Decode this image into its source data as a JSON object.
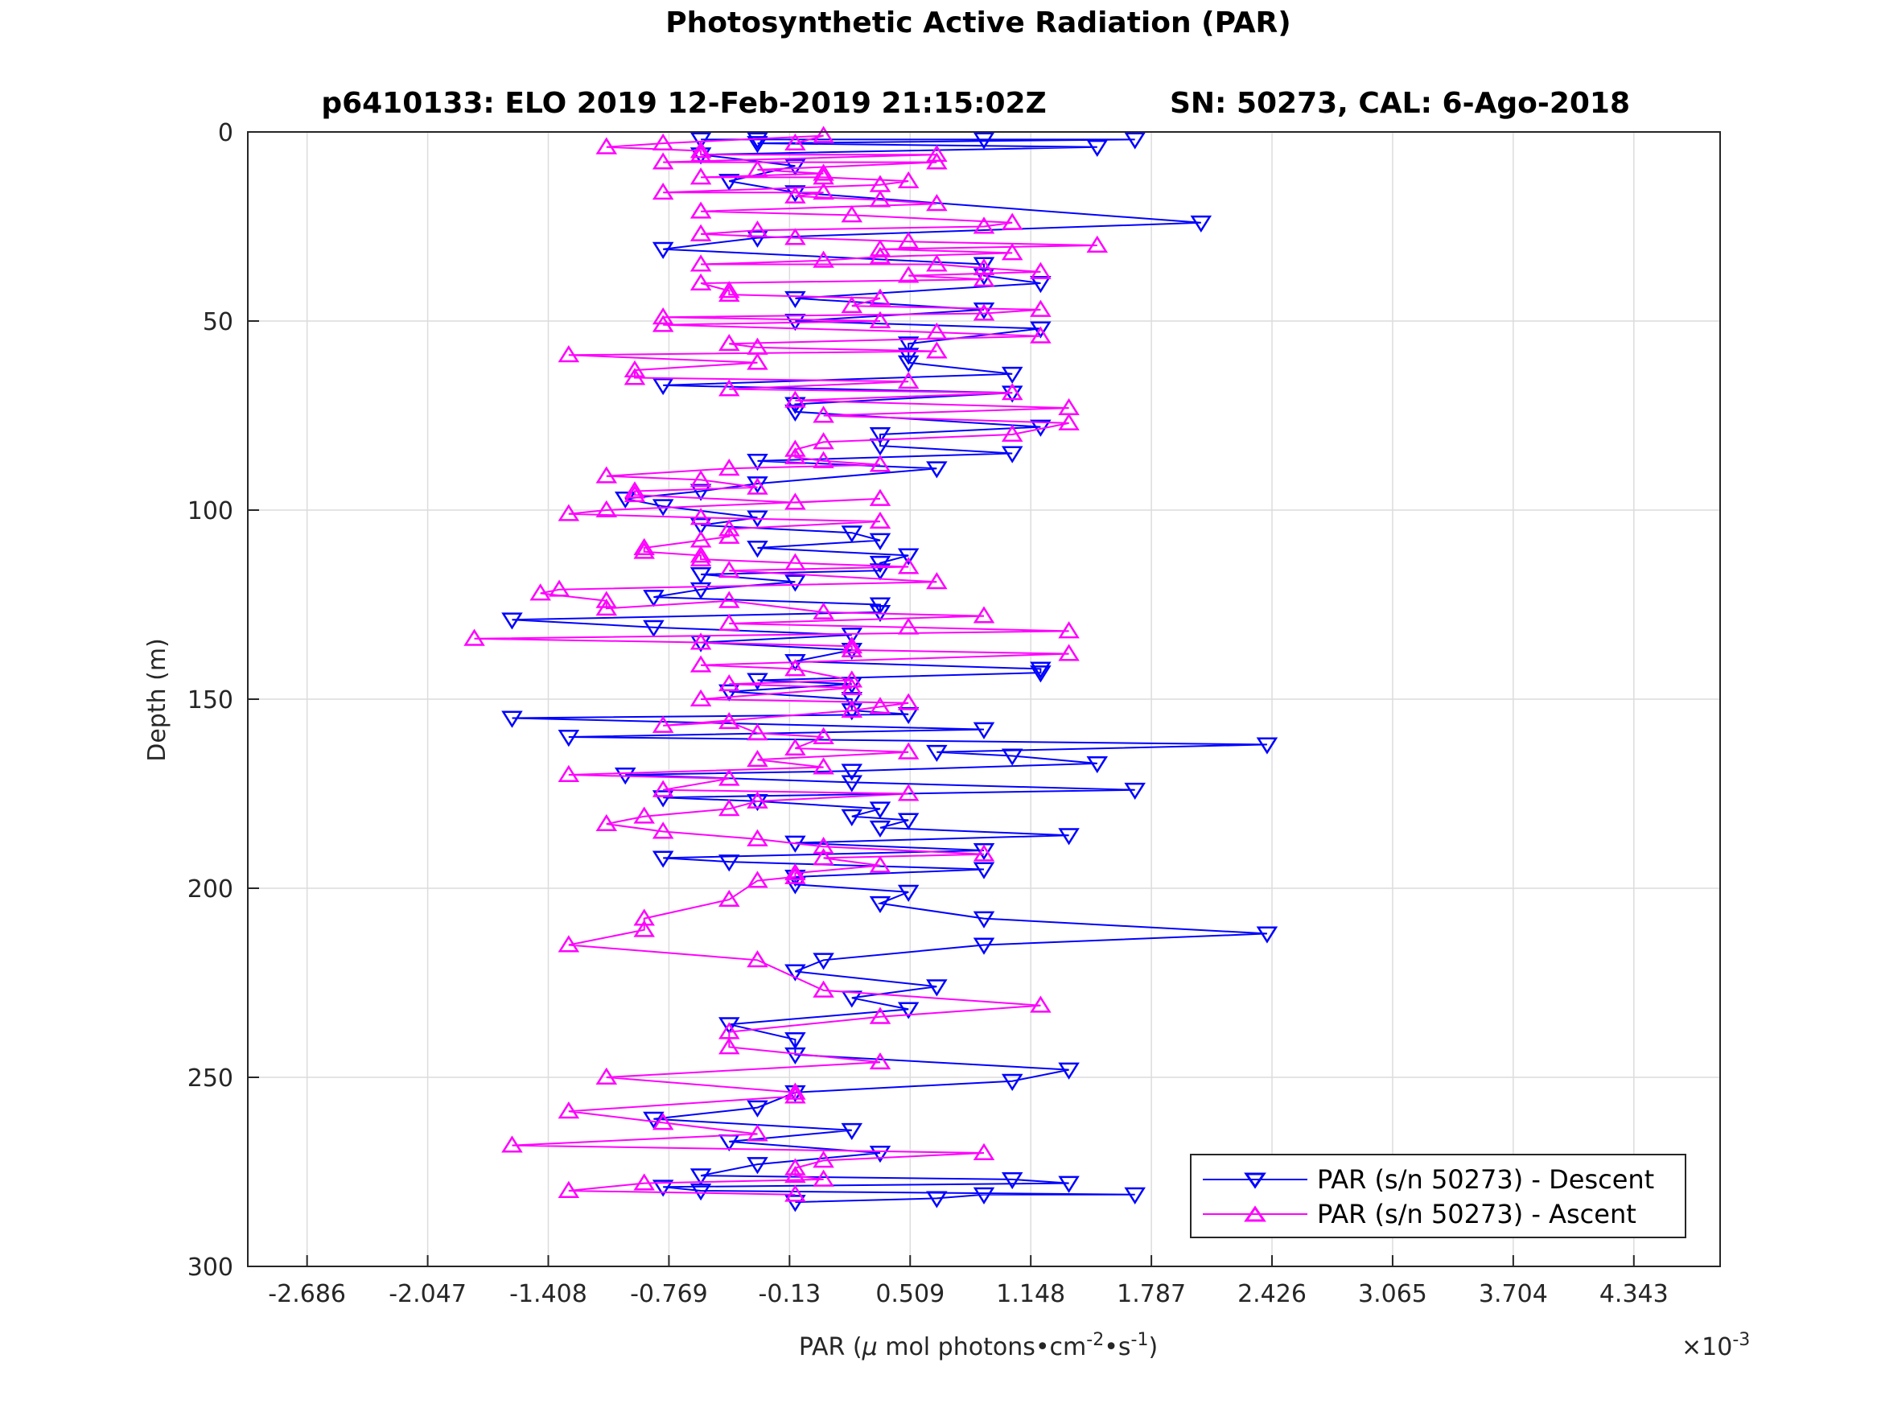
{
  "chart_data": {
    "type": "line",
    "title": "Photosynthetic Active Radiation (PAR)",
    "subtitle_left": "p6410133: ELO 2019 12-Feb-2019 21:15:02Z",
    "subtitle_right": "SN: 50273, CAL: 6-Ago-2018",
    "xlabel": "PAR (μ mol photons•cm⁻²•s⁻¹)",
    "xlabel_parts": {
      "mu": "μ",
      "text": " mol photons•cm",
      "exp1": "-2",
      "bullet_s": "•s",
      "exp2": "-1",
      "close": ")",
      "open": "PAR ("
    },
    "x_exponent_base": "×10",
    "x_exponent": "-3",
    "ylabel": "Depth (m)",
    "xlim": [
      -3.0,
      4.8
    ],
    "ylim": [
      0,
      300
    ],
    "y_reversed": true,
    "x_ticks": [
      -2.686,
      -2.047,
      -1.408,
      -0.769,
      -0.13,
      0.509,
      1.148,
      1.787,
      2.426,
      3.065,
      3.704,
      4.343
    ],
    "x_tick_labels": [
      "-2.686",
      "-2.047",
      "-1.408",
      "-0.769",
      "-0.13",
      "0.509",
      "1.148",
      "1.787",
      "2.426",
      "3.065",
      "3.704",
      "4.343"
    ],
    "y_ticks": [
      0,
      50,
      100,
      150,
      200,
      250,
      300
    ],
    "y_tick_labels": [
      "0",
      "50",
      "100",
      "150",
      "200",
      "250",
      "300"
    ],
    "grid": true,
    "legend_position": "bottom-right",
    "series": [
      {
        "name": "PAR (s/n 50273) - Descent",
        "color": "#0000ff",
        "marker": "triangle-down",
        "points": [
          [
            -0.6,
            2
          ],
          [
            -0.3,
            2
          ],
          [
            0.9,
            2
          ],
          [
            1.7,
            2
          ],
          [
            -0.3,
            3
          ],
          [
            1.5,
            4
          ],
          [
            -0.6,
            6
          ],
          [
            -0.1,
            9
          ],
          [
            -0.45,
            13
          ],
          [
            -0.1,
            16
          ],
          [
            2.05,
            24
          ],
          [
            -0.3,
            28
          ],
          [
            -0.8,
            31
          ],
          [
            0.9,
            35
          ],
          [
            0.9,
            38
          ],
          [
            1.2,
            40
          ],
          [
            -0.1,
            44
          ],
          [
            0.9,
            47
          ],
          [
            -0.1,
            50
          ],
          [
            1.2,
            52
          ],
          [
            0.5,
            56
          ],
          [
            0.5,
            59
          ],
          [
            0.5,
            61
          ],
          [
            1.05,
            64
          ],
          [
            -0.8,
            67
          ],
          [
            1.05,
            69
          ],
          [
            -0.1,
            72
          ],
          [
            -0.1,
            74
          ],
          [
            1.2,
            78
          ],
          [
            0.35,
            80
          ],
          [
            0.35,
            83
          ],
          [
            1.05,
            85
          ],
          [
            -0.3,
            87
          ],
          [
            0.65,
            89
          ],
          [
            -0.3,
            93
          ],
          [
            -0.6,
            95
          ],
          [
            -1.0,
            97
          ],
          [
            -0.8,
            99
          ],
          [
            -0.3,
            102
          ],
          [
            -0.6,
            104
          ],
          [
            0.2,
            106
          ],
          [
            0.35,
            108
          ],
          [
            -0.3,
            110
          ],
          [
            0.5,
            112
          ],
          [
            0.35,
            114
          ],
          [
            0.35,
            116
          ],
          [
            -0.6,
            117
          ],
          [
            -0.1,
            119
          ],
          [
            -0.6,
            121
          ],
          [
            -0.85,
            123
          ],
          [
            0.35,
            125
          ],
          [
            0.35,
            127
          ],
          [
            -1.6,
            129
          ],
          [
            -0.85,
            131
          ],
          [
            0.2,
            133
          ],
          [
            -0.6,
            135
          ],
          [
            0.2,
            137
          ],
          [
            -0.1,
            140
          ],
          [
            1.2,
            142
          ],
          [
            1.2,
            143
          ],
          [
            -0.3,
            145
          ],
          [
            0.2,
            146
          ],
          [
            -0.45,
            148
          ],
          [
            0.2,
            150
          ],
          [
            0.2,
            153
          ],
          [
            0.5,
            154
          ],
          [
            -1.6,
            155
          ],
          [
            0.9,
            158
          ],
          [
            -1.3,
            160
          ],
          [
            2.4,
            162
          ],
          [
            0.65,
            164
          ],
          [
            1.05,
            165
          ],
          [
            1.5,
            167
          ],
          [
            0.2,
            169
          ],
          [
            -1.0,
            170
          ],
          [
            0.2,
            172
          ],
          [
            1.7,
            174
          ],
          [
            -0.8,
            176
          ],
          [
            -0.3,
            177
          ],
          [
            0.35,
            179
          ],
          [
            0.2,
            181
          ],
          [
            0.5,
            182
          ],
          [
            0.35,
            184
          ],
          [
            1.35,
            186
          ],
          [
            -0.1,
            188
          ],
          [
            0.9,
            190
          ],
          [
            -0.8,
            192
          ],
          [
            -0.45,
            193
          ],
          [
            0.9,
            195
          ],
          [
            -0.1,
            197
          ],
          [
            -0.1,
            199
          ],
          [
            0.5,
            201
          ],
          [
            0.35,
            204
          ],
          [
            0.9,
            208
          ],
          [
            2.4,
            212
          ],
          [
            0.9,
            215
          ],
          [
            0.05,
            219
          ],
          [
            -0.1,
            222
          ],
          [
            0.65,
            226
          ],
          [
            0.2,
            229
          ],
          [
            0.5,
            232
          ],
          [
            -0.45,
            236
          ],
          [
            -0.1,
            240
          ],
          [
            -0.1,
            244
          ],
          [
            1.35,
            248
          ],
          [
            1.05,
            251
          ],
          [
            -0.1,
            254
          ],
          [
            -0.3,
            258
          ],
          [
            -0.85,
            261
          ],
          [
            0.2,
            264
          ],
          [
            -0.45,
            267
          ],
          [
            0.35,
            270
          ],
          [
            -0.3,
            273
          ],
          [
            -0.6,
            276
          ],
          [
            1.05,
            277
          ],
          [
            1.35,
            278
          ],
          [
            -0.8,
            279
          ],
          [
            -0.6,
            280
          ],
          [
            1.7,
            281
          ],
          [
            0.9,
            281
          ],
          [
            0.65,
            282
          ],
          [
            -0.1,
            283
          ]
        ]
      },
      {
        "name": "PAR (s/n 50273) - Ascent",
        "color": "#ff00ff",
        "marker": "triangle-up",
        "points": [
          [
            -0.1,
            3
          ],
          [
            0.05,
            1
          ],
          [
            -0.8,
            3
          ],
          [
            -1.1,
            4
          ],
          [
            -0.6,
            5
          ],
          [
            -0.6,
            6
          ],
          [
            0.65,
            6
          ],
          [
            -0.8,
            8
          ],
          [
            0.65,
            8
          ],
          [
            -0.3,
            10
          ],
          [
            0.05,
            11
          ],
          [
            -0.6,
            12
          ],
          [
            0.05,
            12
          ],
          [
            0.5,
            13
          ],
          [
            0.35,
            14
          ],
          [
            -0.8,
            16
          ],
          [
            0.05,
            16
          ],
          [
            -0.1,
            17
          ],
          [
            0.35,
            18
          ],
          [
            0.65,
            19
          ],
          [
            -0.6,
            21
          ],
          [
            0.2,
            22
          ],
          [
            1.05,
            24
          ],
          [
            0.9,
            25
          ],
          [
            -0.3,
            26
          ],
          [
            -0.6,
            27
          ],
          [
            -0.1,
            28
          ],
          [
            0.5,
            29
          ],
          [
            1.5,
            30
          ],
          [
            0.35,
            31
          ],
          [
            1.05,
            32
          ],
          [
            0.35,
            33
          ],
          [
            0.05,
            34
          ],
          [
            -0.6,
            35
          ],
          [
            0.65,
            35
          ],
          [
            0.9,
            36
          ],
          [
            1.2,
            37
          ],
          [
            0.5,
            38
          ],
          [
            0.9,
            39
          ],
          [
            -0.6,
            40
          ],
          [
            -0.45,
            42
          ],
          [
            -0.45,
            43
          ],
          [
            0.35,
            44
          ],
          [
            0.2,
            46
          ],
          [
            1.2,
            47
          ],
          [
            0.9,
            48
          ],
          [
            -0.8,
            49
          ],
          [
            0.35,
            50
          ],
          [
            -0.8,
            51
          ],
          [
            0.65,
            53
          ],
          [
            1.2,
            54
          ],
          [
            -0.45,
            56
          ],
          [
            -0.3,
            57
          ],
          [
            0.65,
            58
          ],
          [
            -1.3,
            59
          ],
          [
            -0.3,
            61
          ],
          [
            -0.95,
            63
          ],
          [
            -0.95,
            65
          ],
          [
            0.5,
            66
          ],
          [
            -0.45,
            68
          ],
          [
            1.05,
            69
          ],
          [
            -0.1,
            71
          ],
          [
            1.35,
            73
          ],
          [
            0.05,
            75
          ],
          [
            1.35,
            77
          ],
          [
            1.05,
            80
          ],
          [
            0.05,
            82
          ],
          [
            -0.1,
            84
          ],
          [
            -0.1,
            86
          ],
          [
            0.05,
            87
          ],
          [
            0.35,
            88
          ],
          [
            -0.45,
            89
          ],
          [
            -1.1,
            91
          ],
          [
            -0.6,
            92
          ],
          [
            -0.3,
            94
          ],
          [
            -0.95,
            95
          ],
          [
            -0.95,
            96
          ],
          [
            -0.1,
            98
          ],
          [
            0.35,
            97
          ],
          [
            -1.1,
            100
          ],
          [
            -1.3,
            101
          ],
          [
            -0.6,
            102
          ],
          [
            0.35,
            103
          ],
          [
            -0.45,
            105
          ],
          [
            -0.45,
            107
          ],
          [
            -0.6,
            108
          ],
          [
            -0.9,
            110
          ],
          [
            -0.9,
            111
          ],
          [
            -0.6,
            112
          ],
          [
            -0.6,
            113
          ],
          [
            -0.1,
            114
          ],
          [
            0.5,
            115
          ],
          [
            -0.45,
            116
          ],
          [
            0.65,
            119
          ],
          [
            -1.35,
            121
          ],
          [
            -1.45,
            122
          ],
          [
            -1.1,
            124
          ],
          [
            -1.1,
            126
          ],
          [
            -0.45,
            124
          ],
          [
            0.05,
            127
          ],
          [
            0.9,
            128
          ],
          [
            -0.45,
            130
          ],
          [
            0.5,
            131
          ],
          [
            1.35,
            132
          ],
          [
            -1.8,
            134
          ],
          [
            -0.6,
            135
          ],
          [
            0.2,
            136
          ],
          [
            0.2,
            137
          ],
          [
            1.35,
            138
          ],
          [
            -0.6,
            141
          ],
          [
            -0.1,
            142
          ],
          [
            0.2,
            145
          ],
          [
            -0.45,
            146
          ],
          [
            0.2,
            147
          ],
          [
            -0.6,
            150
          ],
          [
            0.5,
            151
          ],
          [
            0.35,
            152
          ],
          [
            0.2,
            153
          ],
          [
            -0.8,
            157
          ],
          [
            -0.45,
            156
          ],
          [
            -0.3,
            159
          ],
          [
            0.05,
            160
          ],
          [
            -0.1,
            163
          ],
          [
            0.5,
            164
          ],
          [
            -0.3,
            166
          ],
          [
            0.05,
            168
          ],
          [
            -1.3,
            170
          ],
          [
            -0.45,
            171
          ],
          [
            -0.8,
            174
          ],
          [
            0.5,
            175
          ],
          [
            -0.3,
            177
          ],
          [
            -0.45,
            179
          ],
          [
            -0.9,
            181
          ],
          [
            -1.1,
            183
          ],
          [
            -0.8,
            185
          ],
          [
            -0.3,
            187
          ],
          [
            0.05,
            189
          ],
          [
            0.9,
            191
          ],
          [
            0.05,
            192
          ],
          [
            0.35,
            194
          ],
          [
            -0.1,
            196
          ],
          [
            -0.1,
            197
          ],
          [
            -0.3,
            198
          ],
          [
            -0.45,
            203
          ],
          [
            -0.9,
            208
          ],
          [
            -0.9,
            211
          ],
          [
            -1.3,
            215
          ],
          [
            -0.3,
            219
          ],
          [
            0.05,
            227
          ],
          [
            1.2,
            231
          ],
          [
            0.35,
            234
          ],
          [
            -0.45,
            238
          ],
          [
            -0.45,
            242
          ],
          [
            0.35,
            246
          ],
          [
            -1.1,
            250
          ],
          [
            -0.1,
            254
          ],
          [
            -0.1,
            255
          ],
          [
            -1.3,
            259
          ],
          [
            -0.8,
            262
          ],
          [
            -0.3,
            265
          ],
          [
            -1.6,
            268
          ],
          [
            0.9,
            270
          ],
          [
            0.05,
            272
          ],
          [
            -0.1,
            274
          ],
          [
            -0.1,
            276
          ],
          [
            0.05,
            277
          ],
          [
            -0.9,
            278
          ],
          [
            -1.3,
            280
          ],
          [
            -0.1,
            281
          ]
        ]
      }
    ]
  }
}
